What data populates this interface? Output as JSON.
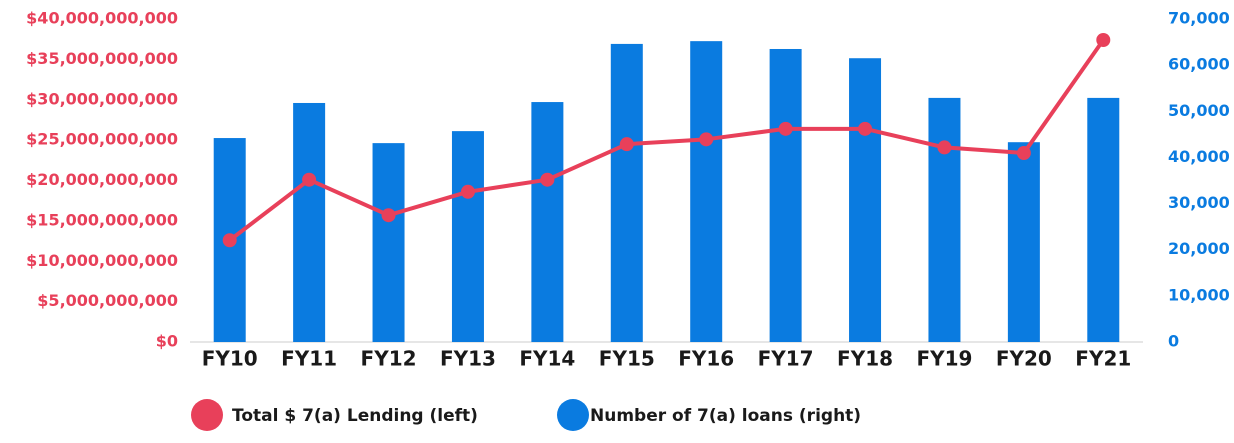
{
  "chart_data": {
    "type": "bar_line_dual_axis",
    "categories": [
      "FY10",
      "FY11",
      "FY12",
      "FY13",
      "FY14",
      "FY15",
      "FY16",
      "FY17",
      "FY18",
      "FY19",
      "FY20",
      "FY21"
    ],
    "series": [
      {
        "name": "Total $ 7(a) Lending (left)",
        "type": "line",
        "axis": "y",
        "color": "#e8405a",
        "values": [
          12600000000,
          20100000000,
          15700000000,
          18600000000,
          20100000000,
          24500000000,
          25100000000,
          26400000000,
          26400000000,
          24100000000,
          23400000000,
          37400000000
        ]
      },
      {
        "name": "Number of 7(a) loans (right)",
        "type": "bar",
        "axis": "y2",
        "color": "#0a7be0",
        "values": [
          44200,
          51800,
          43100,
          45700,
          52000,
          64600,
          65200,
          63500,
          61500,
          52900,
          43300,
          52900
        ]
      }
    ],
    "ylim": [
      0,
      40000000000
    ],
    "yticks": [
      {
        "value": 0,
        "label": "$0"
      },
      {
        "value": 5000000000,
        "label": "$5,000,000,000"
      },
      {
        "value": 10000000000,
        "label": "$10,000,000,000"
      },
      {
        "value": 15000000000,
        "label": "$15,000,000,000"
      },
      {
        "value": 20000000000,
        "label": "$20,000,000,000"
      },
      {
        "value": 25000000000,
        "label": "$25,000,000,000"
      },
      {
        "value": 30000000000,
        "label": "$30,000,000,000"
      },
      {
        "value": 35000000000,
        "label": "$35,000,000,000"
      },
      {
        "value": 40000000000,
        "label": "$40,000,000,000"
      }
    ],
    "y2lim": [
      0,
      70000
    ],
    "y2ticks": [
      0,
      {
        "value": 10000,
        "label": "10,000"
      },
      {
        "value": 20000,
        "label": "20,000"
      },
      {
        "value": 30000,
        "label": "30,000"
      },
      {
        "value": 40000,
        "label": "40,000"
      },
      {
        "value": 50000,
        "label": "50,000"
      },
      {
        "value": 60000,
        "label": "60,000"
      },
      {
        "value": 70000,
        "label": "70,000"
      }
    ],
    "legend": "bottom"
  }
}
